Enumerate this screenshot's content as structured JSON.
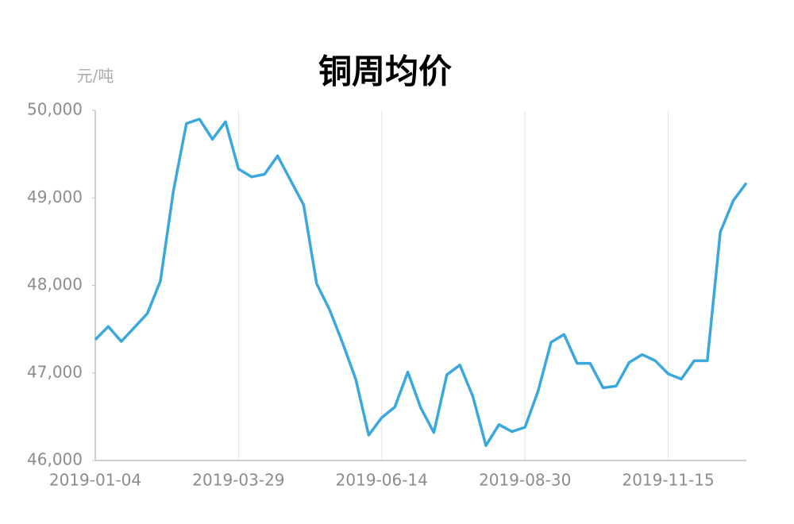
{
  "chart_data": {
    "type": "line",
    "title": "铜周均价",
    "y_unit": "元/吨",
    "categories": [
      "2019-01-04",
      null,
      null,
      null,
      null,
      null,
      null,
      null,
      null,
      null,
      null,
      "2019-03-29",
      null,
      null,
      null,
      null,
      null,
      null,
      null,
      null,
      null,
      null,
      "2019-06-14",
      null,
      null,
      null,
      null,
      null,
      null,
      null,
      null,
      null,
      null,
      "2019-08-30",
      null,
      null,
      null,
      null,
      null,
      null,
      null,
      null,
      null,
      null,
      "2019-11-15",
      null,
      null,
      null,
      null,
      null,
      null
    ],
    "series": [
      {
        "name": "铜周均价",
        "color": "#3aa8dc",
        "values": [
          47380,
          47530,
          47360,
          47520,
          47680,
          48050,
          49080,
          49850,
          49900,
          49670,
          49870,
          49330,
          49240,
          49270,
          49480,
          49200,
          48920,
          48020,
          47720,
          47340,
          46930,
          46290,
          46490,
          46610,
          47010,
          46600,
          46320,
          46980,
          47090,
          46730,
          46170,
          46410,
          46330,
          46380,
          46790,
          47350,
          47440,
          47110,
          47110,
          46830,
          46850,
          47120,
          47210,
          47140,
          46990,
          46930,
          47140,
          47140,
          48610,
          48970,
          49170
        ]
      }
    ],
    "ylim": [
      46000,
      50000
    ],
    "yticks": [
      {
        "value": 46000,
        "label": "46,000"
      },
      {
        "value": 47000,
        "label": "47,000"
      },
      {
        "value": 48000,
        "label": "48,000"
      },
      {
        "value": 49000,
        "label": "49,000"
      },
      {
        "value": 50000,
        "label": "50,000"
      }
    ],
    "grid": "x"
  }
}
